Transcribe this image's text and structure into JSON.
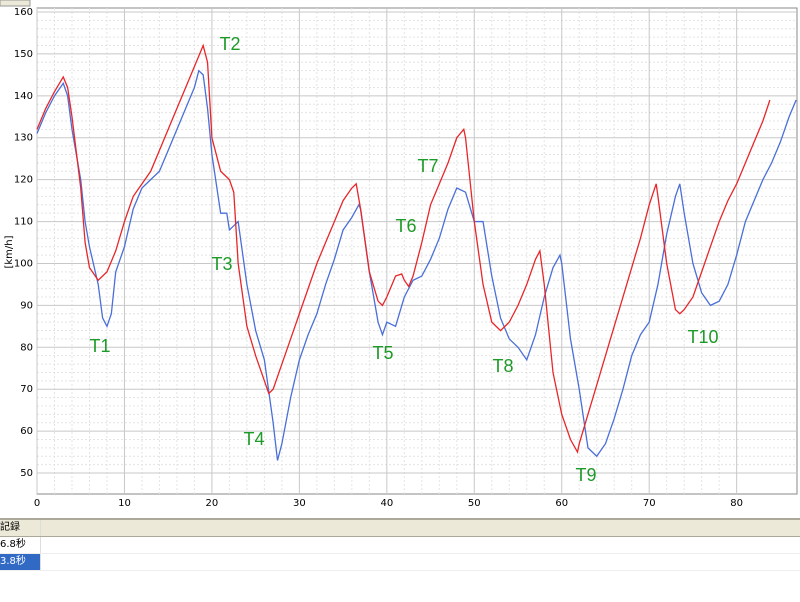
{
  "chart_data": {
    "type": "line",
    "y_label": "[km/h]",
    "xlim": [
      0,
      86.9
    ],
    "ylim": [
      45,
      160
    ],
    "xticks": [
      0,
      10,
      20,
      30,
      40,
      50,
      60,
      70,
      80
    ],
    "yticks": [
      50,
      60,
      70,
      80,
      90,
      100,
      110,
      120,
      130,
      140,
      150,
      160
    ],
    "grid": true,
    "annotations": [
      "T1",
      "T2",
      "T3",
      "T4",
      "T5",
      "T6",
      "T7",
      "T8",
      "T9",
      "T10"
    ],
    "series": [
      {
        "color": "#e8262a",
        "x": [
          0,
          1,
          2,
          3,
          3.5,
          4,
          5,
          5.5,
          6,
          7,
          8,
          9,
          10,
          11,
          12,
          13,
          14,
          15,
          16,
          17,
          18,
          19,
          19.5,
          20,
          21,
          22,
          22.5,
          23,
          24,
          25,
          26,
          26.5,
          27,
          28,
          29,
          30,
          31,
          32,
          33,
          34,
          35,
          36,
          36.5,
          37,
          38,
          39,
          39.5,
          40,
          41,
          41.7,
          42,
          42.5,
          43,
          44,
          45,
          46,
          47,
          48,
          48.8,
          49,
          50,
          51,
          52,
          53,
          54,
          55,
          56,
          57,
          57.5,
          58,
          59,
          60,
          61,
          61.8,
          62,
          63,
          64,
          65,
          66,
          67,
          68,
          69,
          70,
          70.8,
          71,
          72,
          73,
          73.5,
          74,
          75,
          76,
          77,
          78,
          79,
          80,
          81,
          82,
          83,
          83.8
        ],
        "values": [
          132,
          137,
          141,
          144.5,
          142,
          135,
          118,
          105,
          99,
          96,
          98,
          103,
          110,
          116,
          119,
          122,
          127,
          132,
          137,
          142,
          147,
          152,
          148,
          130,
          122,
          120,
          117,
          100,
          85,
          78,
          72,
          69,
          70,
          76,
          82,
          88,
          94,
          100,
          105,
          110,
          115,
          118,
          119,
          113,
          98,
          91,
          90,
          92,
          97,
          97.5,
          96,
          94.5,
          97,
          105,
          114,
          119,
          124,
          130,
          132,
          130,
          110,
          95,
          86,
          84,
          86,
          90,
          95,
          101,
          103,
          95,
          74,
          64,
          58,
          55,
          57,
          64,
          71,
          78,
          85,
          92,
          99,
          106,
          114,
          119,
          116,
          100,
          89,
          88,
          89,
          92,
          98,
          104,
          110,
          115,
          119,
          124,
          129,
          134,
          139
        ]
      },
      {
        "color": "#4a6fd8",
        "x": [
          0,
          1,
          2,
          3,
          3.5,
          4,
          5,
          5.5,
          6,
          7,
          7.5,
          8,
          8.5,
          9,
          10,
          11,
          12,
          13,
          14,
          15,
          16,
          17,
          18,
          18.5,
          19,
          19.5,
          20,
          21,
          21.7,
          22,
          23,
          24,
          25,
          26,
          27,
          27.5,
          28,
          29,
          30,
          31,
          32,
          33,
          34,
          35,
          36,
          36.8,
          37,
          38,
          39,
          39.5,
          40,
          41,
          42,
          43,
          44,
          45,
          46,
          47,
          48,
          49,
          50,
          51,
          52,
          53,
          54,
          55,
          56,
          57,
          58,
          59,
          59.8,
          60,
          61,
          62,
          63,
          64,
          65,
          66,
          67,
          68,
          69,
          70,
          71,
          72,
          73,
          73.5,
          74,
          75,
          76,
          77,
          78,
          79,
          80,
          81,
          82,
          83,
          84,
          85,
          86,
          86.8
        ],
        "values": [
          131,
          136,
          140,
          143,
          140,
          132,
          120,
          110,
          104,
          95,
          87,
          85,
          88,
          98,
          104,
          113,
          118,
          120,
          122,
          127,
          132,
          137,
          142,
          146,
          145,
          137,
          126,
          112,
          112,
          108,
          110,
          95,
          84,
          77,
          62,
          53,
          57,
          68,
          77,
          83,
          88,
          95,
          101,
          108,
          111,
          114,
          113,
          98,
          86,
          83,
          86,
          85,
          92,
          96,
          97,
          101,
          106,
          113,
          118,
          117,
          110,
          110,
          97,
          87,
          82,
          80,
          77,
          83,
          92,
          99,
          102,
          100,
          82,
          70,
          56,
          54,
          57,
          63,
          70,
          78,
          83,
          86,
          95,
          107,
          116,
          119,
          112,
          100,
          93,
          90,
          91,
          95,
          102,
          110,
          115,
          120,
          124,
          129,
          135,
          139
        ]
      }
    ]
  },
  "table": {
    "header": "記録",
    "rows": [
      "6.8秒",
      "3.8秒"
    ]
  }
}
